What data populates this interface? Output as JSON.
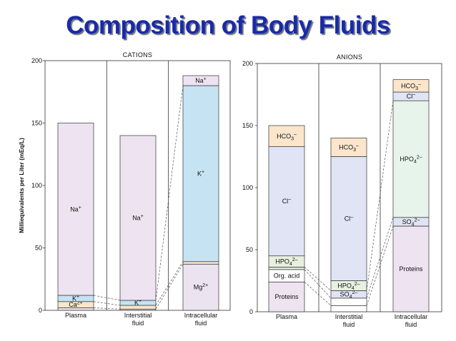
{
  "slide": {
    "title": "Composition of Body Fluids"
  },
  "chart_data": [
    {
      "type": "bar",
      "stacked": true,
      "title": "CATIONS",
      "ylabel": "Milliequivalents per Liter (mEq/L)",
      "ylim": [
        0,
        200
      ],
      "yticks": [
        0,
        50,
        100,
        150,
        200
      ],
      "categories": [
        {
          "line1": "Plasma",
          "line2": ""
        },
        {
          "line1": "Interstitial",
          "line2": "fluid"
        },
        {
          "line1": "Intracellular",
          "line2": "fluid"
        }
      ],
      "bars": [
        [
          {
            "label": "",
            "base": "",
            "sup": "",
            "sub": "",
            "value": 2,
            "color": "#ece3f0"
          },
          {
            "label": "Ca",
            "base": "Ca",
            "sup": "2+",
            "sub": "",
            "value": 5,
            "color": "#fae6c8"
          },
          {
            "label": "K+",
            "base": "K",
            "sup": "+",
            "sub": "",
            "value": 5,
            "color": "#c6e3f3"
          },
          {
            "label": "Na+",
            "base": "Na",
            "sup": "+",
            "sub": "",
            "value": 138,
            "color": "#ede3f1"
          }
        ],
        [
          {
            "label": "",
            "base": "",
            "sup": "",
            "sub": "",
            "value": 1,
            "color": "#ece3f0"
          },
          {
            "label": "",
            "base": "",
            "sup": "",
            "sub": "",
            "value": 3,
            "color": "#fae6c8"
          },
          {
            "label": "K+",
            "base": "K",
            "sup": "+",
            "sub": "",
            "value": 4,
            "color": "#c6e3f3"
          },
          {
            "label": "Na+",
            "base": "Na",
            "sup": "+",
            "sub": "",
            "value": 132,
            "color": "#ede3f1"
          }
        ],
        [
          {
            "label": "Mg2+",
            "base": "Mg",
            "sup": "2+",
            "sub": "",
            "value": 37,
            "color": "#ece3f0"
          },
          {
            "label": "",
            "base": "",
            "sup": "",
            "sub": "",
            "value": 2,
            "color": "#fae6c8"
          },
          {
            "label": "K+",
            "base": "K",
            "sup": "+",
            "sub": "",
            "value": 141,
            "color": "#c6e3f3"
          },
          {
            "label": "Na+",
            "base": "Na",
            "sup": "+",
            "sub": "",
            "value": 8,
            "color": "#ede3f1"
          }
        ]
      ],
      "grid": false,
      "legend": "none"
    },
    {
      "type": "bar",
      "stacked": true,
      "title": "ANIONS",
      "ylabel": "",
      "ylim": [
        0,
        200
      ],
      "yticks": [
        0,
        50,
        100,
        150,
        200
      ],
      "categories": [
        {
          "line1": "Plasma",
          "line2": ""
        },
        {
          "line1": "Interstitial",
          "line2": "fluid"
        },
        {
          "line1": "Intracellular",
          "line2": "fluid"
        }
      ],
      "bars": [
        [
          {
            "label": "Proteins",
            "base": "Proteins",
            "sup": "",
            "sub": "",
            "value": 24,
            "color": "#ede3f1"
          },
          {
            "label": "Org. acid",
            "base": "Org. acid",
            "sup": "",
            "sub": "",
            "value": 10,
            "color": "#ffffff"
          },
          {
            "label": "",
            "base": "",
            "sup": "",
            "sub": "",
            "value": 2,
            "color": "#e2ecd8"
          },
          {
            "label": "HPO42-",
            "base": "HPO",
            "sup": "2–",
            "sub": "4",
            "value": 9,
            "color": "#e8f0e0"
          },
          {
            "label": "Cl-",
            "base": "Cl",
            "sup": "–",
            "sub": "",
            "value": 88,
            "color": "#e0e4f4"
          },
          {
            "label": "HCO3-",
            "base": "HCO",
            "sup": "–",
            "sub": "3",
            "value": 17,
            "color": "#fbe5cb"
          }
        ],
        [
          {
            "label": "",
            "base": "",
            "sup": "",
            "sub": "",
            "value": 5,
            "color": "#ffffff"
          },
          {
            "label": "",
            "base": "",
            "sup": "",
            "sub": "",
            "value": 6,
            "color": "#ffffff"
          },
          {
            "label": "SO42-",
            "base": "SO",
            "sup": "2–",
            "sub": "4",
            "value": 6,
            "color": "#e0e4f4"
          },
          {
            "label": "HPO42-",
            "base": "HPO",
            "sup": "2–",
            "sub": "4",
            "value": 8,
            "color": "#e8f0e0"
          },
          {
            "label": "Cl-",
            "base": "Cl",
            "sup": "–",
            "sub": "",
            "value": 100,
            "color": "#e0e4f4"
          },
          {
            "label": "HCO3-",
            "base": "HCO",
            "sup": "–",
            "sub": "3",
            "value": 15,
            "color": "#fbe5cb"
          }
        ],
        [
          {
            "label": "Proteins",
            "base": "Proteins",
            "sup": "",
            "sub": "",
            "value": 69,
            "color": "#ede3f1"
          },
          {
            "label": "SO42-",
            "base": "SO",
            "sup": "2–",
            "sub": "4",
            "value": 7,
            "color": "#dfe3f3"
          },
          {
            "label": "HPO42-",
            "base": "HPO",
            "sup": "2–",
            "sub": "4",
            "value": 94,
            "color": "#e6f4ec"
          },
          {
            "label": "Cl-",
            "base": "Cl",
            "sup": "–",
            "sub": "",
            "value": 7,
            "color": "#e0e4f4"
          },
          {
            "label": "HCO3-",
            "base": "HCO",
            "sup": "–",
            "sub": "3",
            "value": 10,
            "color": "#fbe5cb"
          }
        ]
      ],
      "grid": false,
      "legend": "none"
    }
  ]
}
